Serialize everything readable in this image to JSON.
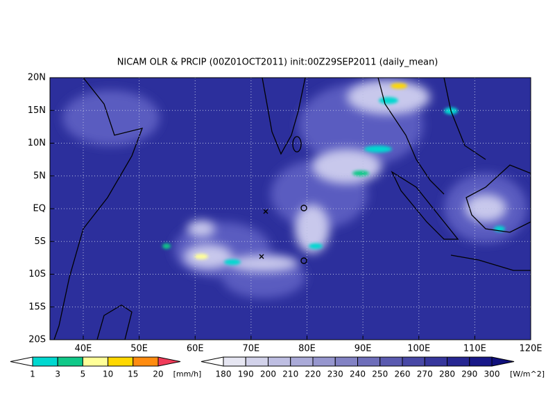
{
  "title": "NICAM OLR & PRCIP (00Z01OCT2011) init:00Z29SEP2011 (daily_mean)",
  "map": {
    "lat_labels": [
      "20N",
      "15N",
      "10N",
      "5N",
      "EQ",
      "5S",
      "10S",
      "15S",
      "20S"
    ],
    "lon_labels": [
      "40E",
      "50E",
      "60E",
      "70E",
      "80E",
      "90E",
      "100E",
      "110E",
      "120E"
    ]
  },
  "precip_colorbar": {
    "labels": [
      "1",
      "3",
      "5",
      "10",
      "15",
      "20"
    ],
    "unit": "[mm/h]",
    "colors": [
      "#ffffff",
      "#00d8d0",
      "#10c888",
      "#ffff98",
      "#ffd800",
      "#ff8c10",
      "#f03c5a"
    ]
  },
  "olr_colorbar": {
    "labels": [
      "180",
      "190",
      "200",
      "210",
      "220",
      "230",
      "240",
      "250",
      "260",
      "270",
      "280",
      "290",
      "300"
    ],
    "unit": "[W/m^2]",
    "colors": [
      "#ffffff",
      "#e6e6f2",
      "#d2d2ea",
      "#bebee2",
      "#aaaad8",
      "#9696ce",
      "#8282c4",
      "#6e6eba",
      "#5a5ab0",
      "#4848a6",
      "#36369c",
      "#262692",
      "#181888",
      "#10107c"
    ]
  }
}
